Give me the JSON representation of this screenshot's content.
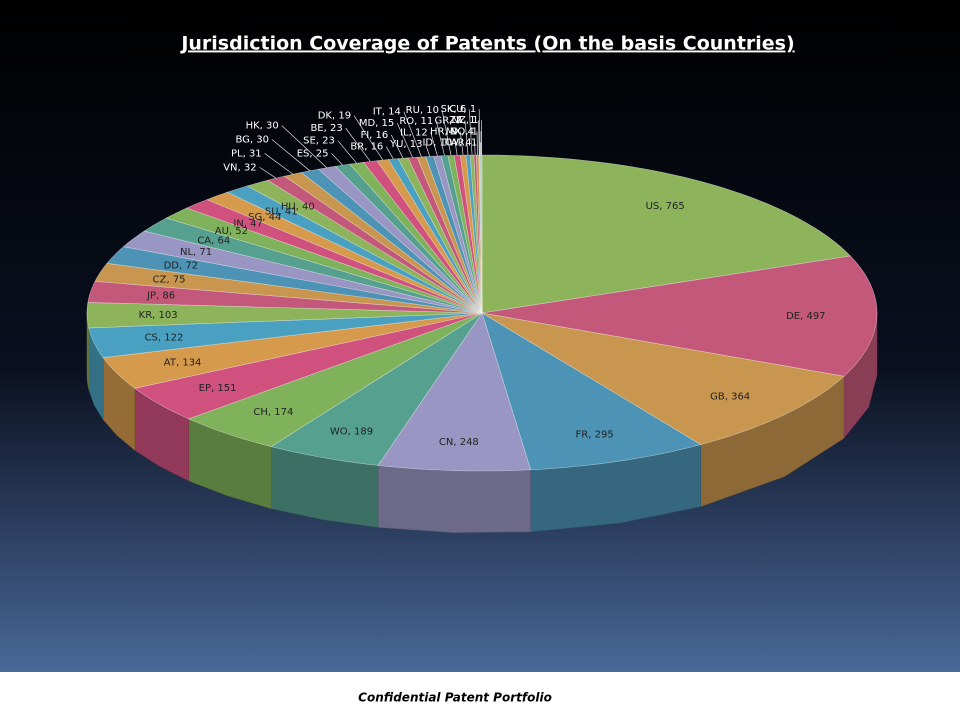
{
  "chart_data": {
    "type": "pie",
    "title": "Jurisdiction Coverage of Patents (On the basis Countries)",
    "footer": "Confidential Patent Portfolio",
    "values": [
      765,
      497,
      364,
      295,
      248,
      189,
      174,
      151,
      134,
      122,
      103,
      86,
      75,
      72,
      71,
      64,
      52,
      47,
      44,
      41,
      40,
      32,
      31,
      30,
      30,
      25,
      23,
      23,
      19,
      16,
      16,
      15,
      14,
      13,
      12,
      11,
      10,
      10,
      9,
      7,
      6,
      4,
      4,
      1,
      1,
      1,
      1,
      1
    ],
    "value_labels": [
      "US, 765",
      "DE, 497",
      "GB, 364",
      "FR, 295",
      "CN, 248",
      "WO, 189",
      "CH, 174",
      "EP, 151",
      "AT, 134",
      "CS, 122",
      "KR, 103",
      "JP, 86",
      "CZ, 75",
      "DD, 72",
      "NL, 71",
      "CA, 64",
      "AU, 52",
      "IN, 47",
      "SG, 44",
      "SU, 41",
      "HU, 40",
      "VN, 32",
      "PL, 31",
      "BG, 30",
      "HK, 30",
      "ES, 25",
      "SE, 23",
      "BE, 23",
      "DK, 19",
      "BR, 16",
      "FI, 16",
      "MD, 15",
      "IT, 14",
      "YU, 13",
      "IL, 12",
      "RO, 11",
      "RU, 10",
      "ID, 10",
      "HR, 9",
      "GR, 7",
      "SK, 6",
      "TW, 4",
      "MX, 4",
      "ZA, 1",
      "CU, 1",
      "AR, 1",
      "NO, 1",
      "NZ, 1"
    ],
    "colors": [
      "#8db35b",
      "#c4587a",
      "#c8964e",
      "#4c93b5",
      "#9a96c4",
      "#56a08f",
      "#7fb25a",
      "#d0507e",
      "#d59a4c",
      "#4aa0c0"
    ]
  }
}
